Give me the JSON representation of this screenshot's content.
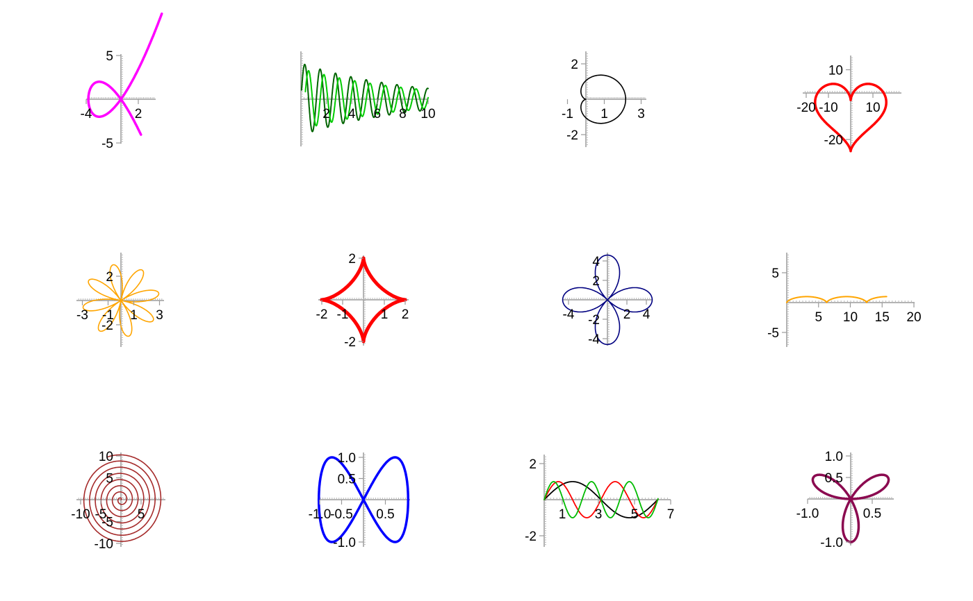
{
  "chart_data": [
    {
      "type": "line",
      "curve": "trefoil-knot-projection",
      "series": [
        {
          "color": "#ff00ff",
          "width": 3.5
        }
      ],
      "xlim": [
        -6,
        6
      ],
      "ylim": [
        -8,
        8
      ],
      "x_ticks": [
        {
          "value": -4,
          "label": "-4"
        },
        {
          "value": 2,
          "label": "2"
        }
      ],
      "y_ticks": [
        {
          "value": 5,
          "label": "5"
        },
        {
          "value": -5,
          "label": "-5"
        }
      ]
    },
    {
      "type": "line",
      "curve": "damped-oscillations",
      "series": [
        {
          "color": "#006400",
          "width": 2
        },
        {
          "color": "#00cc00",
          "width": 2
        }
      ],
      "xlim": [
        0,
        10
      ],
      "ylim": [
        -1,
        1
      ],
      "x_ticks": [
        {
          "value": 2,
          "label": "2"
        },
        {
          "value": 4,
          "label": "4"
        },
        {
          "value": 6,
          "label": "6"
        },
        {
          "value": 8,
          "label": "8"
        },
        {
          "value": 10,
          "label": "10"
        }
      ],
      "y_ticks": []
    },
    {
      "type": "line",
      "curve": "cardioid",
      "series": [
        {
          "color": "#000000",
          "width": 1.6
        }
      ],
      "xlim": [
        -0.5,
        3.5
      ],
      "ylim": [
        -2.4,
        2.4
      ],
      "x_ticks": [
        {
          "value": -1,
          "label": "-1"
        },
        {
          "value": 1,
          "label": "1"
        },
        {
          "value": 3,
          "label": "3"
        }
      ],
      "y_ticks": [
        {
          "value": 2,
          "label": "2"
        },
        {
          "value": -2,
          "label": "-2"
        }
      ]
    },
    {
      "type": "line",
      "curve": "heart",
      "series": [
        {
          "color": "#ff0000",
          "width": 3.5
        }
      ],
      "xlim": [
        -22,
        22
      ],
      "ylim": [
        -22,
        12
      ],
      "x_ticks": [
        {
          "value": -20,
          "label": "-20"
        },
        {
          "value": -10,
          "label": "-10"
        },
        {
          "value": 10,
          "label": "10"
        }
      ],
      "y_ticks": [
        {
          "value": 10,
          "label": "10"
        },
        {
          "value": -20,
          "label": "-20"
        }
      ]
    },
    {
      "type": "line",
      "curve": "rose-8-petal",
      "series": [
        {
          "color": "#ffa500",
          "width": 1.6
        }
      ],
      "xlim": [
        -3.5,
        3.5
      ],
      "ylim": [
        -3.5,
        3.5
      ],
      "x_ticks": [
        {
          "value": -3,
          "label": "-3"
        },
        {
          "value": -1,
          "label": "-1"
        },
        {
          "value": 1,
          "label": "1"
        },
        {
          "value": 3,
          "label": "3"
        }
      ],
      "y_ticks": [
        {
          "value": 2,
          "label": "2"
        },
        {
          "value": -2,
          "label": "-2"
        }
      ]
    },
    {
      "type": "line",
      "curve": "astroid",
      "series": [
        {
          "color": "#ff0000",
          "width": 5
        }
      ],
      "xlim": [
        -2.2,
        2.2
      ],
      "ylim": [
        -2.2,
        2.2
      ],
      "x_ticks": [
        {
          "value": -2,
          "label": "-2"
        },
        {
          "value": -1,
          "label": "-1"
        },
        {
          "value": 1,
          "label": "1"
        },
        {
          "value": 2,
          "label": "2"
        }
      ],
      "y_ticks": [
        {
          "value": 2,
          "label": "2"
        },
        {
          "value": -2,
          "label": "-2"
        }
      ]
    },
    {
      "type": "line",
      "curve": "rose-4-petal",
      "series": [
        {
          "color": "#000080",
          "width": 1.6
        }
      ],
      "xlim": [
        -4.6,
        4.6
      ],
      "ylim": [
        -4.6,
        4.6
      ],
      "x_ticks": [
        {
          "value": -4,
          "label": "-4"
        },
        {
          "value": 2,
          "label": "2"
        },
        {
          "value": 4,
          "label": "4"
        }
      ],
      "y_ticks": [
        {
          "value": 4,
          "label": "4"
        },
        {
          "value": 2,
          "label": "2"
        },
        {
          "value": -2,
          "label": "-2"
        },
        {
          "value": -4,
          "label": "-4"
        }
      ]
    },
    {
      "type": "line",
      "curve": "cycloid",
      "series": [
        {
          "color": "#ffa500",
          "width": 2
        }
      ],
      "xlim": [
        0,
        20
      ],
      "ylim": [
        -7,
        7
      ],
      "x_ticks": [
        {
          "value": 5,
          "label": "5"
        },
        {
          "value": 10,
          "label": "10"
        },
        {
          "value": 15,
          "label": "15"
        },
        {
          "value": 20,
          "label": "20"
        }
      ],
      "y_ticks": [
        {
          "value": 5,
          "label": "5"
        },
        {
          "value": -5,
          "label": "-5"
        }
      ]
    },
    {
      "type": "line",
      "curve": "archimedean-spiral",
      "series": [
        {
          "color": "#a52a2a",
          "width": 1.6
        }
      ],
      "xlim": [
        -12.5,
        12.5
      ],
      "ylim": [
        -12.5,
        12.5
      ],
      "x_ticks": [
        {
          "value": -10,
          "label": "-10"
        },
        {
          "value": -5,
          "label": "-5"
        },
        {
          "value": 5,
          "label": "5"
        }
      ],
      "y_ticks": [
        {
          "value": 10,
          "label": "10"
        },
        {
          "value": 5,
          "label": "5"
        },
        {
          "value": -5,
          "label": "-5"
        },
        {
          "value": -10,
          "label": "-10"
        }
      ]
    },
    {
      "type": "line",
      "curve": "lissajous-figure-eight",
      "series": [
        {
          "color": "#0000ff",
          "width": 3.5
        }
      ],
      "xlim": [
        -1.1,
        1.1
      ],
      "ylim": [
        -1.1,
        1.1
      ],
      "x_ticks": [
        {
          "value": -1,
          "label": "-1.0"
        },
        {
          "value": -0.5,
          "label": "-0.5"
        },
        {
          "value": 0.5,
          "label": "0.5"
        }
      ],
      "y_ticks": [
        {
          "value": 1,
          "label": "1.0"
        },
        {
          "value": 0.5,
          "label": "0.5"
        },
        {
          "value": -1,
          "label": "-1.0"
        }
      ]
    },
    {
      "type": "line",
      "curve": "sine-harmonics",
      "series": [
        {
          "color": "#000000",
          "width": 1.8
        },
        {
          "color": "#ff0000",
          "width": 1.8
        },
        {
          "color": "#00bb00",
          "width": 1.8
        }
      ],
      "xlim": [
        0,
        7
      ],
      "ylim": [
        -2.6,
        2.6
      ],
      "x_ticks": [
        {
          "value": 1,
          "label": "1"
        },
        {
          "value": 3,
          "label": "3"
        },
        {
          "value": 5,
          "label": "5"
        },
        {
          "value": 7,
          "label": "7"
        }
      ],
      "y_ticks": [
        {
          "value": 2,
          "label": "2"
        },
        {
          "value": -2,
          "label": "-2"
        }
      ]
    },
    {
      "type": "line",
      "curve": "rose-3-petal",
      "series": [
        {
          "color": "#8b0a50",
          "width": 3.5
        }
      ],
      "xlim": [
        -1.1,
        1.1
      ],
      "ylim": [
        -1.1,
        1.1
      ],
      "x_ticks": [
        {
          "value": -1,
          "label": "-1.0"
        },
        {
          "value": 0.5,
          "label": "0.5"
        }
      ],
      "y_ticks": [
        {
          "value": 1,
          "label": "1.0"
        },
        {
          "value": 0.5,
          "label": "0.5"
        },
        {
          "value": -1,
          "label": "-1.0"
        }
      ]
    }
  ]
}
